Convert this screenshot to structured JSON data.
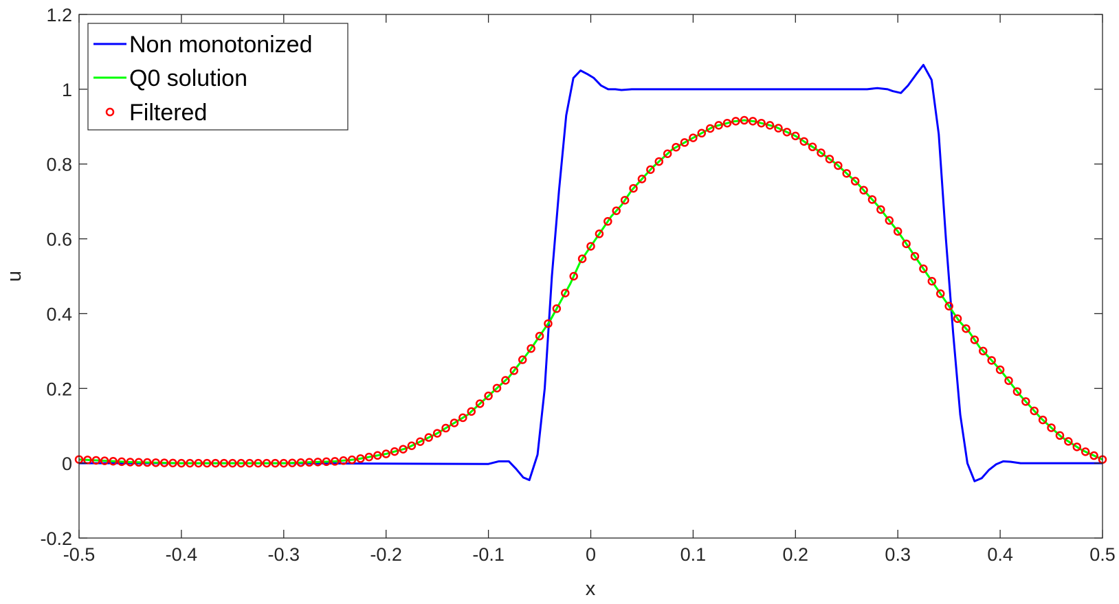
{
  "chart_data": {
    "type": "line",
    "xlabel": "x",
    "ylabel": "u",
    "xlim": [
      -0.5,
      0.5
    ],
    "ylim": [
      -0.2,
      1.2
    ],
    "xticks": [
      "-0.5",
      "-0.4",
      "-0.3",
      "-0.2",
      "-0.1",
      "0",
      "0.1",
      "0.2",
      "0.3",
      "0.4",
      "0.5"
    ],
    "yticks": [
      "-0.2",
      "0",
      "0.2",
      "0.4",
      "0.6",
      "0.8",
      "1",
      "1.2"
    ],
    "grid": false,
    "legend_position": "top-left",
    "series": [
      {
        "name": "Non monotonized",
        "style": "line",
        "color": "#0000FF",
        "x": [
          -0.5,
          -0.3,
          -0.1,
          -0.09,
          -0.08,
          -0.073,
          -0.066,
          -0.06,
          -0.052,
          -0.045,
          -0.038,
          -0.031,
          -0.024,
          -0.017,
          -0.01,
          -0.003,
          0.003,
          0.01,
          0.017,
          0.024,
          0.03,
          0.04,
          0.05,
          0.1,
          0.2,
          0.27,
          0.28,
          0.29,
          0.295,
          0.303,
          0.31,
          0.318,
          0.325,
          0.333,
          0.34,
          0.347,
          0.354,
          0.361,
          0.368,
          0.375,
          0.382,
          0.389,
          0.396,
          0.403,
          0.41,
          0.42,
          0.43,
          0.45,
          0.5
        ],
        "y": [
          0,
          0,
          -0.002,
          0.005,
          0.005,
          -0.015,
          -0.038,
          -0.045,
          0.023,
          0.2,
          0.5,
          0.73,
          0.93,
          1.03,
          1.05,
          1.04,
          1.03,
          1.01,
          1.0,
          1.0,
          0.998,
          1.0,
          1.0,
          1.0,
          1.0,
          1.0,
          1.003,
          1.0,
          0.995,
          0.99,
          1.01,
          1.04,
          1.065,
          1.025,
          0.88,
          0.6,
          0.35,
          0.13,
          0.0,
          -0.048,
          -0.04,
          -0.018,
          -0.003,
          0.005,
          0.004,
          0.0,
          0.0,
          0.0,
          0.0
        ]
      },
      {
        "name": "Q0 solution",
        "style": "line",
        "color": "#00FF00",
        "x": [
          -0.5,
          -0.45,
          -0.4,
          -0.35,
          -0.3,
          -0.25,
          -0.23,
          -0.2,
          -0.18,
          -0.15,
          -0.12,
          -0.1,
          -0.08,
          -0.06,
          -0.04,
          -0.03,
          -0.02,
          -0.01,
          0.0,
          0.01,
          0.02,
          0.03,
          0.04,
          0.05,
          0.06,
          0.08,
          0.1,
          0.12,
          0.14,
          0.15,
          0.16,
          0.18,
          0.2,
          0.22,
          0.24,
          0.26,
          0.28,
          0.3,
          0.32,
          0.34,
          0.36,
          0.37,
          0.38,
          0.4,
          0.42,
          0.44,
          0.46,
          0.48,
          0.5
        ],
        "y": [
          0.01,
          0.003,
          0.0,
          0.0,
          0.0,
          0.005,
          0.01,
          0.025,
          0.04,
          0.08,
          0.13,
          0.18,
          0.23,
          0.3,
          0.38,
          0.43,
          0.48,
          0.54,
          0.58,
          0.62,
          0.66,
          0.69,
          0.73,
          0.76,
          0.79,
          0.84,
          0.87,
          0.9,
          0.914,
          0.917,
          0.914,
          0.9,
          0.875,
          0.84,
          0.8,
          0.75,
          0.69,
          0.62,
          0.54,
          0.46,
          0.38,
          0.35,
          0.31,
          0.25,
          0.18,
          0.12,
          0.07,
          0.035,
          0.01
        ]
      },
      {
        "name": "Filtered",
        "style": "markers",
        "color": "#FF0000",
        "marker_count": 121
      }
    ]
  }
}
